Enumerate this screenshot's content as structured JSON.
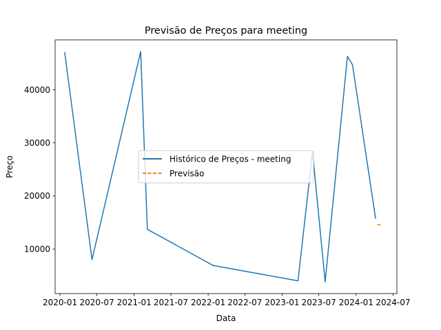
{
  "chart_data": {
    "type": "line",
    "title": "Previsão de Preços para meeting",
    "xlabel": "Data",
    "ylabel": "Preço",
    "xlim": [
      "2019-12-08",
      "2024-07-20"
    ],
    "ylim": [
      1600,
      49400
    ],
    "x_ticks": [
      {
        "date": "2020-01-01",
        "label": "2020-01"
      },
      {
        "date": "2020-07-01",
        "label": "2020-07"
      },
      {
        "date": "2021-01-01",
        "label": "2021-01"
      },
      {
        "date": "2021-07-01",
        "label": "2021-07"
      },
      {
        "date": "2022-01-01",
        "label": "2022-01"
      },
      {
        "date": "2022-07-01",
        "label": "2022-07"
      },
      {
        "date": "2023-01-01",
        "label": "2023-01"
      },
      {
        "date": "2023-07-01",
        "label": "2023-07"
      },
      {
        "date": "2024-01-01",
        "label": "2024-01"
      },
      {
        "date": "2024-07-01",
        "label": "2024-07"
      }
    ],
    "y_ticks": [
      10000,
      20000,
      30000,
      40000
    ],
    "grid": false,
    "legend_position": "center",
    "series": [
      {
        "name": "Histórico de Preços - meeting",
        "color": "#1f77b4",
        "style": "solid",
        "points": [
          {
            "x": "2020-01-24",
            "y": 47100
          },
          {
            "x": "2020-06-07",
            "y": 8000
          },
          {
            "x": "2021-02-02",
            "y": 47200
          },
          {
            "x": "2021-03-07",
            "y": 13700
          },
          {
            "x": "2022-01-25",
            "y": 6900
          },
          {
            "x": "2023-03-20",
            "y": 4000
          },
          {
            "x": "2023-05-31",
            "y": 28300
          },
          {
            "x": "2023-08-01",
            "y": 3800
          },
          {
            "x": "2023-11-19",
            "y": 46300
          },
          {
            "x": "2023-12-14",
            "y": 44700
          },
          {
            "x": "2024-04-06",
            "y": 15700
          }
        ]
      },
      {
        "name": "Previsão",
        "color": "#ff7f0e",
        "style": "dashed",
        "points": [
          {
            "x": "2024-04-13",
            "y": 14600
          },
          {
            "x": "2024-05-08",
            "y": 14500
          }
        ]
      }
    ]
  }
}
